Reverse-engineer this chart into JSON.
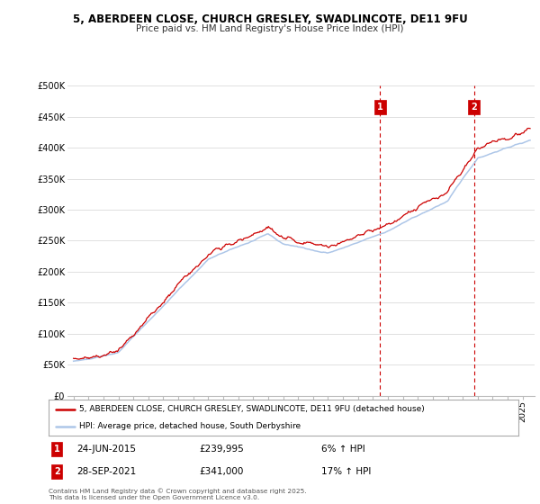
{
  "title": "5, ABERDEEN CLOSE, CHURCH GRESLEY, SWADLINCOTE, DE11 9FU",
  "subtitle": "Price paid vs. HM Land Registry's House Price Index (HPI)",
  "legend_line1": "5, ABERDEEN CLOSE, CHURCH GRESLEY, SWADLINCOTE, DE11 9FU (detached house)",
  "legend_line2": "HPI: Average price, detached house, South Derbyshire",
  "annotation1_label": "1",
  "annotation1_date": "24-JUN-2015",
  "annotation1_price": "£239,995",
  "annotation1_hpi": "6% ↑ HPI",
  "annotation1_year": 2015.48,
  "annotation1_value": 239995,
  "annotation2_label": "2",
  "annotation2_date": "28-SEP-2021",
  "annotation2_price": "£341,000",
  "annotation2_hpi": "17% ↑ HPI",
  "annotation2_year": 2021.75,
  "annotation2_value": 341000,
  "footer": "Contains HM Land Registry data © Crown copyright and database right 2025.\nThis data is licensed under the Open Government Licence v3.0.",
  "hpi_color": "#adc6e8",
  "price_color": "#cc0000",
  "annotation_color": "#cc0000",
  "background_color": "#ffffff",
  "grid_color": "#e0e0e0",
  "ylim": [
    0,
    500000
  ],
  "yticks": [
    0,
    50000,
    100000,
    150000,
    200000,
    250000,
    300000,
    350000,
    400000,
    450000,
    500000
  ],
  "xlim_start": 1994.6,
  "xlim_end": 2025.8
}
